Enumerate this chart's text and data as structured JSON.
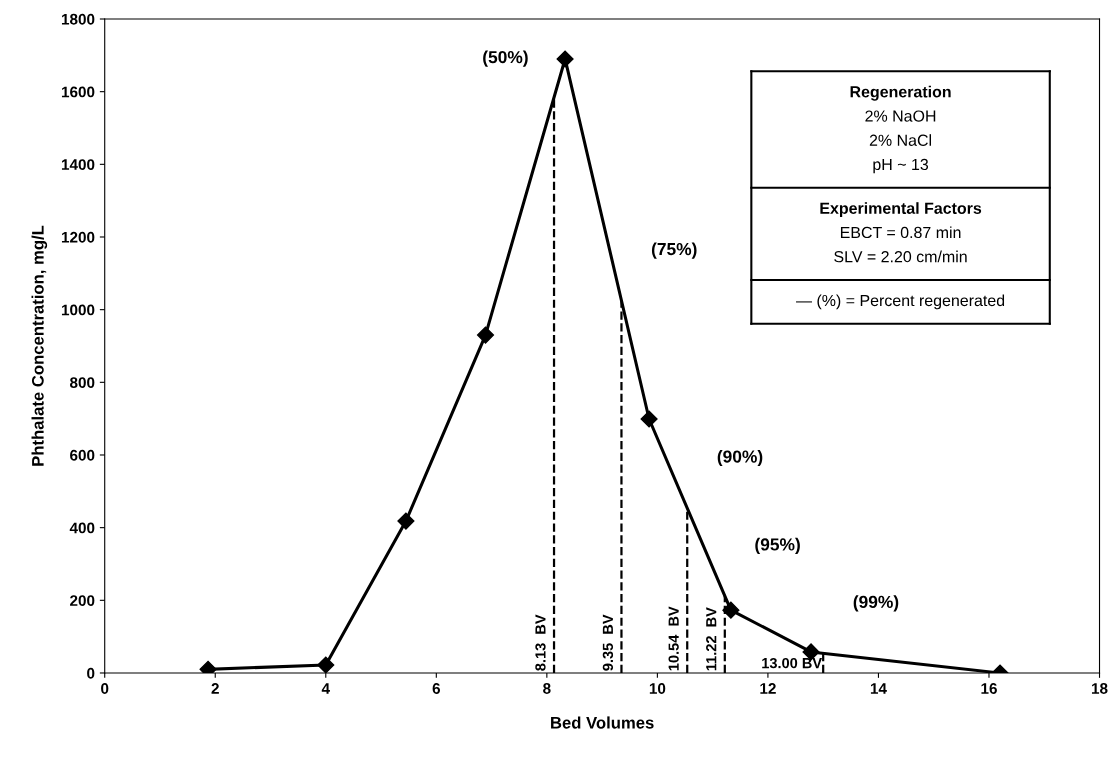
{
  "chart_data": {
    "type": "line",
    "xlabel": "Bed Volumes",
    "ylabel": "Phthalate Concentration, mg/L",
    "x": [
      1.87,
      4.0,
      5.45,
      6.89,
      8.33,
      9.85,
      11.33,
      12.78,
      16.2
    ],
    "series": [
      {
        "color": "#000000",
        "values": [
          10,
          22,
          418,
          930,
          1690,
          699,
          173,
          58,
          0
        ]
      }
    ],
    "marker": "diamond",
    "line_style": "solid",
    "xlim": [
      0,
      18
    ],
    "xticks": [
      0,
      2,
      4,
      6,
      8,
      10,
      12,
      14,
      16,
      18
    ],
    "ylim": [
      0,
      1800
    ],
    "yticks": [
      0,
      200,
      400,
      600,
      800,
      1000,
      1200,
      1400,
      1600,
      1800
    ],
    "grid": false,
    "legend": false,
    "ref_lines": [
      {
        "axis": "x",
        "value": 8.13,
        "label": "8.13  BV",
        "line_style": "dashed",
        "color": "#000000"
      },
      {
        "axis": "x",
        "value": 9.35,
        "label": "9.35  BV",
        "line_style": "dashed",
        "color": "#000000"
      },
      {
        "axis": "x",
        "value": 10.54,
        "label": "10.54  BV",
        "line_style": "dashed",
        "color": "#000000"
      },
      {
        "axis": "x",
        "value": 11.22,
        "label": "11.22  BV",
        "line_style": "dashed",
        "color": "#000000"
      },
      {
        "axis": "x",
        "value": 13.0,
        "label": "13.00 BV",
        "line_style": "dashed",
        "color": "#000000"
      }
    ],
    "annotations": [
      {
        "text": "(50%)",
        "x": 8.13,
        "y": 1584
      },
      {
        "text": "(75%)",
        "x": 9.35,
        "y": 1025
      },
      {
        "text": "(90%)",
        "x": 10.54,
        "y": 454
      },
      {
        "text": "(95%)",
        "x": 11.22,
        "y": 212
      },
      {
        "text": "(99%)",
        "x": 13.0,
        "y": 54
      },
      "Regeneration\n2% NaOH\n2% NaCl\npH ~ 13",
      "Experimental Factors\nEBCT = 0.87 min\nSLV = 2.20 cm/min",
      "— (%) = Percent regenerated"
    ]
  }
}
